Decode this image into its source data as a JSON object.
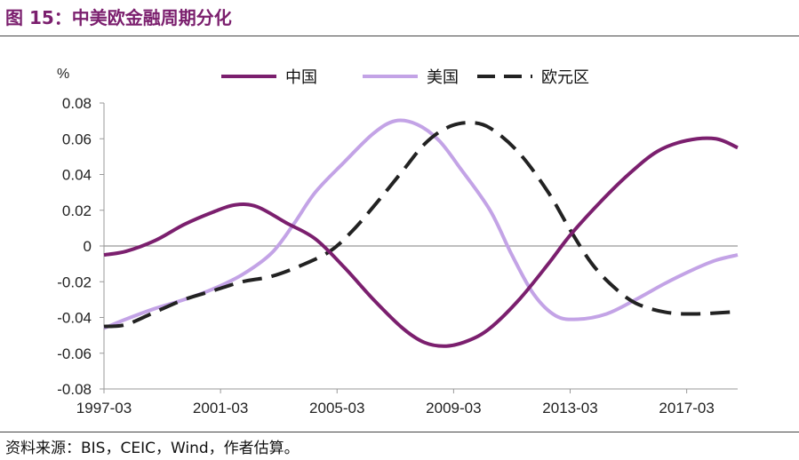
{
  "header": {
    "title": "图 15：中美欧金融周期分化"
  },
  "footer": {
    "source": "资料来源：BIS，CEIC，Wind，作者估算。"
  },
  "colors": {
    "title": "#7b1f6e",
    "china": "#7b1f6e",
    "us": "#c3a3e6",
    "euro": "#222222",
    "axis": "#999999"
  },
  "chart_data": {
    "type": "line",
    "unit_label": "%",
    "legend_position": "top",
    "ylim": [
      -0.08,
      0.08
    ],
    "yticks": [
      0.08,
      0.06,
      0.04,
      0.02,
      0,
      -0.02,
      -0.04,
      -0.06,
      -0.08
    ],
    "ytick_labels": [
      "0.08",
      "0.06",
      "0.04",
      "0.02",
      "0",
      "-0.02",
      "-0.04",
      "-0.06",
      "-0.08"
    ],
    "xlim": [
      1997.25,
      2019.0
    ],
    "xticks": [
      1997.25,
      2001.25,
      2005.25,
      2009.25,
      2013.25,
      2017.25
    ],
    "xtick_labels": [
      "1997-03",
      "2001-03",
      "2005-03",
      "2009-03",
      "2013-03",
      "2017-03"
    ],
    "grid": false,
    "series": [
      {
        "name": "中国",
        "color": "#7b1f6e",
        "dash": "solid",
        "points": [
          [
            1997.25,
            -0.005
          ],
          [
            1998.0,
            -0.003
          ],
          [
            1999.0,
            0.003
          ],
          [
            2000.0,
            0.012
          ],
          [
            2001.0,
            0.019
          ],
          [
            2001.75,
            0.023
          ],
          [
            2002.5,
            0.022
          ],
          [
            2003.5,
            0.013
          ],
          [
            2004.5,
            0.004
          ],
          [
            2005.5,
            -0.012
          ],
          [
            2006.5,
            -0.03
          ],
          [
            2007.5,
            -0.046
          ],
          [
            2008.25,
            -0.054
          ],
          [
            2009.0,
            -0.056
          ],
          [
            2009.75,
            -0.053
          ],
          [
            2010.5,
            -0.046
          ],
          [
            2011.5,
            -0.03
          ],
          [
            2012.5,
            -0.01
          ],
          [
            2013.25,
            0.006
          ],
          [
            2014.25,
            0.024
          ],
          [
            2015.25,
            0.04
          ],
          [
            2016.25,
            0.053
          ],
          [
            2017.25,
            0.059
          ],
          [
            2018.25,
            0.06
          ],
          [
            2019.0,
            0.055
          ]
        ]
      },
      {
        "name": "美国",
        "color": "#c3a3e6",
        "dash": "solid",
        "points": [
          [
            1997.25,
            -0.046
          ],
          [
            1998.0,
            -0.041
          ],
          [
            1999.0,
            -0.035
          ],
          [
            2000.0,
            -0.03
          ],
          [
            2001.0,
            -0.024
          ],
          [
            2002.0,
            -0.016
          ],
          [
            2003.0,
            -0.004
          ],
          [
            2003.75,
            0.012
          ],
          [
            2004.5,
            0.03
          ],
          [
            2005.5,
            0.047
          ],
          [
            2006.5,
            0.063
          ],
          [
            2007.25,
            0.07
          ],
          [
            2008.0,
            0.068
          ],
          [
            2008.75,
            0.059
          ],
          [
            2009.5,
            0.043
          ],
          [
            2010.5,
            0.02
          ],
          [
            2011.25,
            -0.005
          ],
          [
            2012.0,
            -0.027
          ],
          [
            2012.75,
            -0.039
          ],
          [
            2013.5,
            -0.041
          ],
          [
            2014.5,
            -0.038
          ],
          [
            2015.5,
            -0.03
          ],
          [
            2016.5,
            -0.021
          ],
          [
            2017.5,
            -0.013
          ],
          [
            2018.25,
            -0.008
          ],
          [
            2019.0,
            -0.005
          ]
        ]
      },
      {
        "name": "欧元区",
        "color": "#222222",
        "dash": "dashed",
        "points": [
          [
            1997.25,
            -0.045
          ],
          [
            1998.0,
            -0.044
          ],
          [
            1999.0,
            -0.037
          ],
          [
            2000.0,
            -0.03
          ],
          [
            2001.0,
            -0.025
          ],
          [
            2002.0,
            -0.02
          ],
          [
            2003.0,
            -0.017
          ],
          [
            2004.0,
            -0.011
          ],
          [
            2005.0,
            -0.003
          ],
          [
            2005.75,
            0.008
          ],
          [
            2006.5,
            0.022
          ],
          [
            2007.5,
            0.042
          ],
          [
            2008.25,
            0.057
          ],
          [
            2009.0,
            0.066
          ],
          [
            2009.75,
            0.069
          ],
          [
            2010.5,
            0.066
          ],
          [
            2011.5,
            0.052
          ],
          [
            2012.5,
            0.03
          ],
          [
            2013.25,
            0.009
          ],
          [
            2014.0,
            -0.01
          ],
          [
            2014.75,
            -0.023
          ],
          [
            2015.5,
            -0.032
          ],
          [
            2016.5,
            -0.037
          ],
          [
            2017.5,
            -0.038
          ],
          [
            2018.75,
            -0.037
          ]
        ]
      }
    ]
  }
}
